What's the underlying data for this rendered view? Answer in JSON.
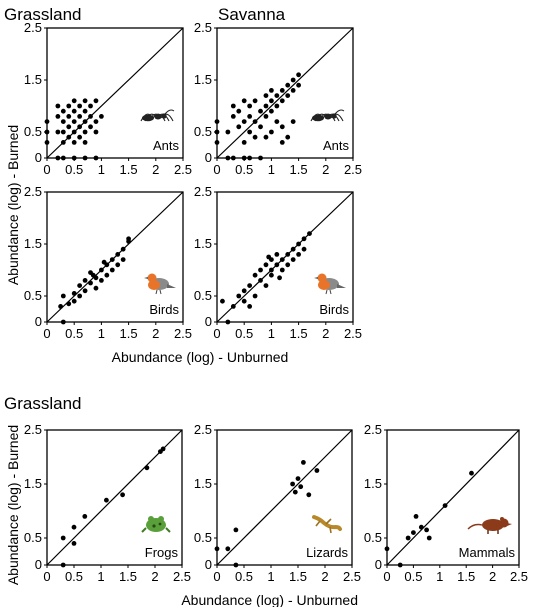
{
  "figure": {
    "top_titles": [
      "Grassland",
      "Savanna"
    ],
    "bottom_title": "Grassland",
    "top_ylabel": "Abundance (log) - Burned",
    "top_xlabel": "Abundance (log) - Unburned",
    "bottom_ylabel": "Abundance (log) - Burned",
    "bottom_xlabel": "Abundance (log) - Unburned"
  },
  "chart_data": [
    {
      "type": "scatter",
      "habitat": "Grassland",
      "taxon": "Ants",
      "icon": "ant-icon",
      "xlim": [
        0,
        2.5
      ],
      "ylim": [
        0,
        2.5
      ],
      "xticks": [
        "0",
        "0.5",
        "1",
        "1.5",
        "2",
        "2.5"
      ],
      "yticks": [
        "0",
        "0.5",
        "1.5",
        "2.5"
      ],
      "reference_line": "1:1",
      "points": [
        [
          0,
          0.3
        ],
        [
          0,
          0.5
        ],
        [
          0,
          0.7
        ],
        [
          0.2,
          0.5
        ],
        [
          0.2,
          0.8
        ],
        [
          0.2,
          1.0
        ],
        [
          0.3,
          0.3
        ],
        [
          0.3,
          0.5
        ],
        [
          0.3,
          0.7
        ],
        [
          0.3,
          0.9
        ],
        [
          0.3,
          0
        ],
        [
          0.4,
          0.4
        ],
        [
          0.4,
          0.6
        ],
        [
          0.4,
          0.8
        ],
        [
          0.4,
          1.0
        ],
        [
          0.5,
          0.3
        ],
        [
          0.5,
          0.5
        ],
        [
          0.5,
          0.7
        ],
        [
          0.5,
          0.9
        ],
        [
          0.5,
          1.1
        ],
        [
          0.5,
          0
        ],
        [
          0.6,
          0.4
        ],
        [
          0.6,
          0.6
        ],
        [
          0.6,
          0.8
        ],
        [
          0.6,
          1.0
        ],
        [
          0.7,
          0.3
        ],
        [
          0.7,
          0.5
        ],
        [
          0.7,
          0.7
        ],
        [
          0.7,
          0.9
        ],
        [
          0.7,
          1.1
        ],
        [
          0.7,
          0
        ],
        [
          0.8,
          0.6
        ],
        [
          0.8,
          0.8
        ],
        [
          0.8,
          1.0
        ],
        [
          0.9,
          0.5
        ],
        [
          0.9,
          0.7
        ],
        [
          0.9,
          1.1
        ],
        [
          0.9,
          0
        ],
        [
          1.0,
          0.8
        ],
        [
          0.2,
          0
        ]
      ]
    },
    {
      "type": "scatter",
      "habitat": "Savanna",
      "taxon": "Ants",
      "icon": "ant-icon",
      "xlim": [
        0,
        2.5
      ],
      "ylim": [
        0,
        2.5
      ],
      "xticks": [
        "0",
        "0.5",
        "1",
        "1.5",
        "2",
        "2.5"
      ],
      "yticks": [
        "0",
        "0.5",
        "1.5",
        "2.5"
      ],
      "reference_line": "1:1",
      "points": [
        [
          0,
          0.3
        ],
        [
          0,
          0.5
        ],
        [
          0,
          0.7
        ],
        [
          0.2,
          0
        ],
        [
          0.3,
          0
        ],
        [
          0.5,
          0
        ],
        [
          0.6,
          0
        ],
        [
          0.8,
          0
        ],
        [
          0.2,
          0.5
        ],
        [
          0.3,
          0.8
        ],
        [
          0.3,
          1.0
        ],
        [
          0.4,
          0.6
        ],
        [
          0.4,
          0.9
        ],
        [
          0.5,
          0.3
        ],
        [
          0.5,
          0.7
        ],
        [
          0.5,
          1.1
        ],
        [
          0.6,
          0.5
        ],
        [
          0.6,
          0.8
        ],
        [
          0.6,
          1.0
        ],
        [
          0.7,
          0.4
        ],
        [
          0.7,
          0.7
        ],
        [
          0.7,
          1.1
        ],
        [
          0.8,
          0.6
        ],
        [
          0.8,
          0.9
        ],
        [
          0.9,
          0.8
        ],
        [
          0.9,
          1.0
        ],
        [
          0.9,
          1.2
        ],
        [
          1.0,
          0.5
        ],
        [
          1.0,
          0.9
        ],
        [
          1.0,
          1.1
        ],
        [
          1.0,
          1.3
        ],
        [
          1.1,
          0.7
        ],
        [
          1.1,
          1.0
        ],
        [
          1.1,
          1.2
        ],
        [
          1.2,
          1.1
        ],
        [
          1.2,
          1.3
        ],
        [
          1.2,
          0.6
        ],
        [
          1.3,
          1.2
        ],
        [
          1.3,
          1.4
        ],
        [
          1.3,
          0.4
        ],
        [
          1.4,
          1.3
        ],
        [
          1.4,
          1.5
        ],
        [
          1.4,
          0.7
        ],
        [
          1.5,
          1.4
        ],
        [
          1.5,
          1.6
        ],
        [
          1.2,
          0.3
        ],
        [
          0.9,
          0.4
        ]
      ]
    },
    {
      "type": "scatter",
      "habitat": "Grassland",
      "taxon": "Birds",
      "icon": "bird-icon",
      "xlim": [
        0,
        2.5
      ],
      "ylim": [
        0,
        2.5
      ],
      "xticks": [
        "0",
        "0.5",
        "1",
        "1.5",
        "2",
        "2.5"
      ],
      "yticks": [
        "0",
        "0.5",
        "1.5",
        "2.5"
      ],
      "reference_line": "1:1",
      "points": [
        [
          0.3,
          0
        ],
        [
          0.25,
          0.3
        ],
        [
          0.3,
          0.5
        ],
        [
          0.4,
          0.35
        ],
        [
          0.5,
          0.55
        ],
        [
          0.6,
          0.7
        ],
        [
          0.6,
          0.5
        ],
        [
          0.7,
          0.8
        ],
        [
          0.7,
          0.6
        ],
        [
          0.8,
          0.75
        ],
        [
          0.8,
          0.95
        ],
        [
          0.9,
          0.85
        ],
        [
          0.9,
          0.65
        ],
        [
          1.0,
          1.0
        ],
        [
          1.0,
          0.8
        ],
        [
          1.1,
          1.1
        ],
        [
          1.1,
          0.9
        ],
        [
          1.2,
          1.2
        ],
        [
          1.2,
          1.0
        ],
        [
          1.3,
          1.3
        ],
        [
          1.3,
          1.1
        ],
        [
          1.4,
          1.4
        ],
        [
          1.4,
          1.2
        ],
        [
          1.5,
          1.55
        ],
        [
          1.5,
          1.6
        ],
        [
          0.5,
          0.4
        ],
        [
          0.85,
          0.9
        ],
        [
          1.05,
          1.15
        ]
      ]
    },
    {
      "type": "scatter",
      "habitat": "Savanna",
      "taxon": "Birds",
      "icon": "bird-icon",
      "xlim": [
        0,
        2.5
      ],
      "ylim": [
        0,
        2.5
      ],
      "xticks": [
        "0",
        "0.5",
        "1",
        "1.5",
        "2",
        "2.5"
      ],
      "yticks": [
        "0",
        "0.5",
        "1.5",
        "2.5"
      ],
      "reference_line": "1:1",
      "points": [
        [
          0.2,
          0
        ],
        [
          0.1,
          0.4
        ],
        [
          0.3,
          0.3
        ],
        [
          0.4,
          0.5
        ],
        [
          0.5,
          0.4
        ],
        [
          0.5,
          0.6
        ],
        [
          0.6,
          0.7
        ],
        [
          0.7,
          0.5
        ],
        [
          0.7,
          0.9
        ],
        [
          0.8,
          0.8
        ],
        [
          0.8,
          1.0
        ],
        [
          0.9,
          1.1
        ],
        [
          0.9,
          0.7
        ],
        [
          1.0,
          1.2
        ],
        [
          1.0,
          0.9
        ],
        [
          1.0,
          1.0
        ],
        [
          1.1,
          1.1
        ],
        [
          1.1,
          1.3
        ],
        [
          1.2,
          1.2
        ],
        [
          1.2,
          1.0
        ],
        [
          1.3,
          1.3
        ],
        [
          1.3,
          1.1
        ],
        [
          1.4,
          1.4
        ],
        [
          1.4,
          1.2
        ],
        [
          1.5,
          1.5
        ],
        [
          1.5,
          1.3
        ],
        [
          1.6,
          1.6
        ],
        [
          1.6,
          1.4
        ],
        [
          1.7,
          1.7
        ],
        [
          0.6,
          0.3
        ],
        [
          1.15,
          0.85
        ],
        [
          0.95,
          1.25
        ]
      ]
    },
    {
      "type": "scatter",
      "habitat": "Grassland",
      "taxon": "Frogs",
      "icon": "frog-icon",
      "xlim": [
        0,
        2.5
      ],
      "ylim": [
        0,
        2.5
      ],
      "xticks": [
        "0",
        "0.5",
        "1",
        "1.5",
        "2",
        "2.5"
      ],
      "yticks": [
        "0",
        "0.5",
        "1.5",
        "2.5"
      ],
      "reference_line": "1:1",
      "points": [
        [
          0.3,
          0
        ],
        [
          0.3,
          0.5
        ],
        [
          0.5,
          0.4
        ],
        [
          0.5,
          0.7
        ],
        [
          0.7,
          0.9
        ],
        [
          1.1,
          1.2
        ],
        [
          1.4,
          1.3
        ],
        [
          1.85,
          1.8
        ],
        [
          2.1,
          2.1
        ],
        [
          2.15,
          2.15
        ]
      ]
    },
    {
      "type": "scatter",
      "habitat": "Grassland",
      "taxon": "Lizards",
      "icon": "lizard-icon",
      "xlim": [
        0,
        2.5
      ],
      "ylim": [
        0,
        2.5
      ],
      "xticks": [
        "0",
        "0.5",
        "1",
        "1.5",
        "2",
        "2.5"
      ],
      "yticks": [
        "0",
        "0.5",
        "1.5",
        "2.5"
      ],
      "reference_line": "1:1",
      "points": [
        [
          0,
          0.3
        ],
        [
          0.2,
          0.3
        ],
        [
          0.35,
          0.65
        ],
        [
          0.35,
          0
        ],
        [
          1.4,
          1.5
        ],
        [
          1.5,
          1.6
        ],
        [
          1.45,
          1.35
        ],
        [
          1.6,
          1.9
        ],
        [
          1.7,
          1.3
        ],
        [
          1.85,
          1.75
        ],
        [
          1.55,
          1.45
        ]
      ]
    },
    {
      "type": "scatter",
      "habitat": "Grassland",
      "taxon": "Mammals",
      "icon": "mammal-icon",
      "xlim": [
        0,
        2.5
      ],
      "ylim": [
        0,
        2.5
      ],
      "xticks": [
        "0",
        "0.5",
        "1",
        "1.5",
        "2",
        "2.5"
      ],
      "yticks": [
        "0",
        "0.5",
        "1.5",
        "2.5"
      ],
      "reference_line": "1:1",
      "points": [
        [
          0,
          0.3
        ],
        [
          0.25,
          0
        ],
        [
          0.4,
          0.5
        ],
        [
          0.5,
          0.6
        ],
        [
          0.55,
          0.9
        ],
        [
          0.65,
          0.7
        ],
        [
          0.75,
          0.65
        ],
        [
          0.8,
          0.5
        ],
        [
          1.1,
          1.1
        ],
        [
          1.6,
          1.7
        ]
      ]
    }
  ]
}
